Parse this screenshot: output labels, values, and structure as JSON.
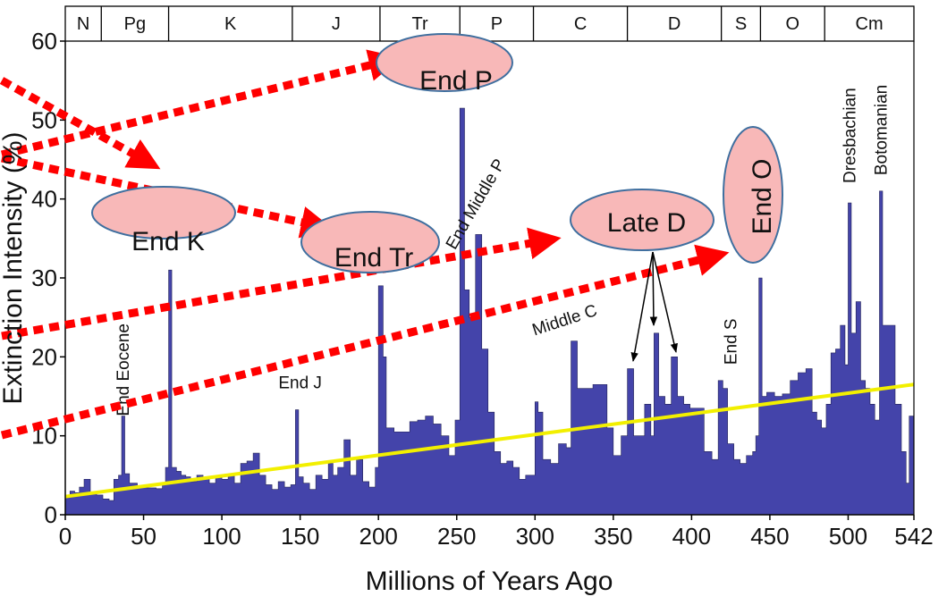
{
  "chart_data": {
    "type": "area",
    "xlabel": "Millions of Years Ago",
    "ylabel": "Extinction Intensity (%)",
    "xlim": [
      0,
      542
    ],
    "ylim": [
      0,
      60
    ],
    "x_ticks": [
      0,
      50,
      100,
      150,
      200,
      250,
      300,
      350,
      400,
      450,
      500,
      542
    ],
    "y_ticks": [
      0,
      10,
      20,
      30,
      40,
      50,
      60
    ],
    "grid": false,
    "colors": {
      "area": "#4444aa",
      "trend": "#f2ef00",
      "arrow": "#ff0000",
      "ellipse_fill": "#f8b8b8",
      "ellipse_stroke": "#3f6f9f"
    },
    "periods": [
      {
        "label": "N",
        "start": 0,
        "end": 23
      },
      {
        "label": "Pg",
        "start": 23,
        "end": 66
      },
      {
        "label": "K",
        "start": 66,
        "end": 145
      },
      {
        "label": "J",
        "start": 145,
        "end": 201
      },
      {
        "label": "Tr",
        "start": 201,
        "end": 252
      },
      {
        "label": "P",
        "start": 252,
        "end": 299
      },
      {
        "label": "C",
        "start": 299,
        "end": 359
      },
      {
        "label": "D",
        "start": 359,
        "end": 419
      },
      {
        "label": "S",
        "start": 419,
        "end": 444
      },
      {
        "label": "O",
        "start": 444,
        "end": 485
      },
      {
        "label": "Cm",
        "start": 485,
        "end": 542
      }
    ],
    "series": [
      {
        "values": [
          [
            0,
            2.5
          ],
          [
            3,
            3
          ],
          [
            6,
            2.8
          ],
          [
            9,
            3.5
          ],
          [
            12,
            4.5
          ],
          [
            16,
            2.8
          ],
          [
            20,
            2.5
          ],
          [
            24,
            2
          ],
          [
            28,
            1.8
          ],
          [
            31,
            4.5
          ],
          [
            34,
            5
          ],
          [
            36,
            12.5
          ],
          [
            38,
            5.2
          ],
          [
            41,
            4
          ],
          [
            46,
            3.5
          ],
          [
            52,
            3.4
          ],
          [
            58,
            3.3
          ],
          [
            62,
            4
          ],
          [
            64,
            6
          ],
          [
            66,
            31
          ],
          [
            68,
            6
          ],
          [
            71,
            5.5
          ],
          [
            74,
            5
          ],
          [
            77,
            4.8
          ],
          [
            80,
            4.2
          ],
          [
            84,
            5
          ],
          [
            88,
            4.5
          ],
          [
            92,
            4
          ],
          [
            96,
            4.8
          ],
          [
            100,
            4.5
          ],
          [
            104,
            5
          ],
          [
            108,
            4
          ],
          [
            112,
            6.5
          ],
          [
            116,
            6.8
          ],
          [
            120,
            7.8
          ],
          [
            124,
            5
          ],
          [
            128,
            3.8
          ],
          [
            132,
            3.2
          ],
          [
            136,
            4.2
          ],
          [
            140,
            3.5
          ],
          [
            144,
            3.8
          ],
          [
            147,
            13.3
          ],
          [
            149,
            4.8
          ],
          [
            152,
            4
          ],
          [
            156,
            3.2
          ],
          [
            160,
            5
          ],
          [
            164,
            4.5
          ],
          [
            168,
            6.5
          ],
          [
            171,
            5
          ],
          [
            174,
            6
          ],
          [
            178,
            9.5
          ],
          [
            182,
            5
          ],
          [
            186,
            7
          ],
          [
            190,
            4.2
          ],
          [
            194,
            3.5
          ],
          [
            198,
            6
          ],
          [
            200,
            29
          ],
          [
            203,
            20
          ],
          [
            205,
            11
          ],
          [
            210,
            10.5
          ],
          [
            215,
            10.5
          ],
          [
            220,
            11.8
          ],
          [
            225,
            12
          ],
          [
            230,
            12.5
          ],
          [
            235,
            11.5
          ],
          [
            240,
            10
          ],
          [
            245,
            7.5
          ],
          [
            249,
            12
          ],
          [
            252,
            51.5
          ],
          [
            255,
            28.5
          ],
          [
            258,
            25
          ],
          [
            262,
            35.5
          ],
          [
            266,
            21
          ],
          [
            270,
            13
          ],
          [
            274,
            8
          ],
          [
            278,
            6.5
          ],
          [
            282,
            6.8
          ],
          [
            286,
            6
          ],
          [
            290,
            4.5
          ],
          [
            294,
            5
          ],
          [
            298,
            5
          ],
          [
            300,
            14.3
          ],
          [
            302,
            13
          ],
          [
            305,
            7
          ],
          [
            310,
            6.5
          ],
          [
            315,
            9
          ],
          [
            320,
            8.5
          ],
          [
            323,
            22
          ],
          [
            327,
            16
          ],
          [
            332,
            16
          ],
          [
            337,
            16.5
          ],
          [
            342,
            16.5
          ],
          [
            346,
            11
          ],
          [
            350,
            7.5
          ],
          [
            355,
            10
          ],
          [
            359,
            18.5
          ],
          [
            363,
            10
          ],
          [
            366,
            10
          ],
          [
            370,
            14
          ],
          [
            374,
            10
          ],
          [
            376,
            23
          ],
          [
            379,
            15
          ],
          [
            383,
            14
          ],
          [
            387,
            20
          ],
          [
            391,
            15
          ],
          [
            395,
            14
          ],
          [
            399,
            13.5
          ],
          [
            403,
            13.5
          ],
          [
            408,
            8
          ],
          [
            413,
            7
          ],
          [
            417,
            17
          ],
          [
            420,
            16
          ],
          [
            423,
            9
          ],
          [
            427,
            7
          ],
          [
            431,
            6.5
          ],
          [
            435,
            7.5
          ],
          [
            439,
            8
          ],
          [
            441,
            10
          ],
          [
            443,
            30
          ],
          [
            445,
            15
          ],
          [
            448,
            15.5
          ],
          [
            453,
            15
          ],
          [
            458,
            15.3
          ],
          [
            463,
            17
          ],
          [
            468,
            18
          ],
          [
            473,
            18.5
          ],
          [
            477,
            13
          ],
          [
            480,
            12
          ],
          [
            483,
            11
          ],
          [
            486,
            14
          ],
          [
            489,
            20.5
          ],
          [
            492,
            21
          ],
          [
            495,
            24
          ],
          [
            498,
            19
          ],
          [
            500,
            39.5
          ],
          [
            502,
            23
          ],
          [
            505,
            27
          ],
          [
            508,
            17
          ],
          [
            511,
            16
          ],
          [
            514,
            14
          ],
          [
            517,
            12
          ],
          [
            520,
            41
          ],
          [
            522,
            24
          ],
          [
            526,
            24
          ],
          [
            530,
            14
          ],
          [
            534,
            8
          ],
          [
            537,
            4
          ],
          [
            539,
            12.5
          ],
          [
            542,
            12.5
          ]
        ]
      }
    ],
    "trend_line": {
      "x": [
        0,
        542
      ],
      "y": [
        2.3,
        16.5
      ]
    },
    "annotations": [
      {
        "text": "End Eocene",
        "x": 36,
        "y": 12.5
      },
      {
        "text": "End J",
        "x": 150,
        "y": 16
      },
      {
        "text": "End Middle P",
        "x": 265,
        "y": 39
      },
      {
        "text": "Middle C",
        "x": 320,
        "y": 24
      },
      {
        "text": "End S",
        "x": 424,
        "y": 19
      },
      {
        "text": "Dresbachian",
        "x": 500,
        "y": 42
      },
      {
        "text": "Botomanian",
        "x": 520,
        "y": 43
      }
    ],
    "callouts": [
      "End P",
      "End K",
      "End Tr",
      "Late D",
      "End O"
    ]
  }
}
